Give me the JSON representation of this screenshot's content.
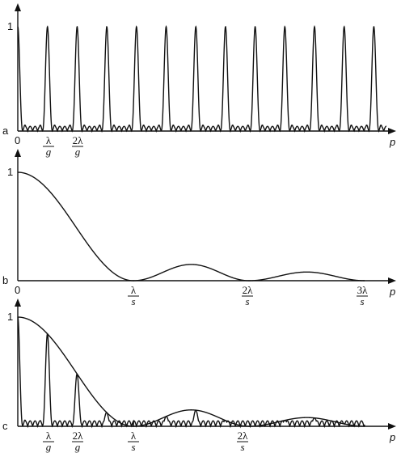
{
  "panels": [
    {
      "label": "a",
      "y_tick": "1",
      "origin": "0",
      "axis": "p",
      "marks": [
        {
          "num": "λ",
          "den": "g"
        },
        {
          "num": "2λ",
          "den": "g"
        }
      ]
    },
    {
      "label": "b",
      "y_tick": "1",
      "origin": "0",
      "axis": "p",
      "marks": [
        {
          "num": "λ",
          "den": "s"
        },
        {
          "num": "2λ",
          "den": "s"
        },
        {
          "num": "3λ",
          "den": "s"
        }
      ]
    },
    {
      "label": "c",
      "y_tick": "1",
      "origin": "",
      "axis": "p",
      "marks": [
        {
          "num": "λ",
          "den": "g"
        },
        {
          "num": "2λ",
          "den": "g"
        },
        {
          "num": "λ",
          "den": "s"
        },
        {
          "num": "2λ",
          "den": "s"
        }
      ]
    }
  ]
}
